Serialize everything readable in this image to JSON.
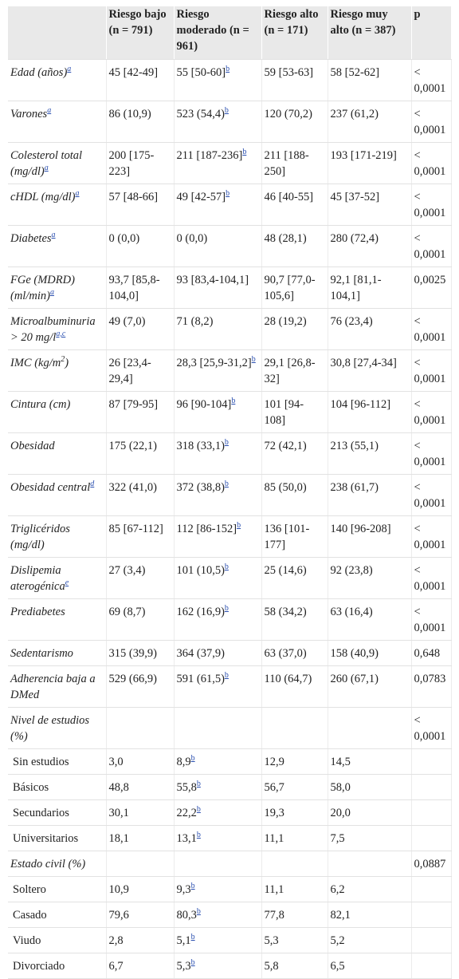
{
  "table": {
    "header": [
      "Riesgo bajo (n = 791)",
      "Riesgo moderado (n = 961)",
      "Riesgo alto (n = 171)",
      "Riesgo muy alto (n = 387)",
      "p"
    ],
    "rows": [
      {
        "label": [
          "Edad (años)",
          {
            "ref": "a"
          }
        ],
        "cells": [
          "45 [42-49]",
          [
            "55 [50-60]",
            {
              "ref": "b"
            }
          ],
          "59 [53-63]",
          "58 [52-62]",
          "< 0,0001"
        ]
      },
      {
        "label": [
          "Varones",
          {
            "ref": "a"
          }
        ],
        "cells": [
          "86 (10,9)",
          [
            "523 (54,4)",
            {
              "ref": "b"
            }
          ],
          "120 (70,2)",
          "237 (61,2)",
          "< 0,0001"
        ]
      },
      {
        "label": [
          "Colesterol total (mg/dl)",
          {
            "ref": "a"
          }
        ],
        "cells": [
          "200 [175-223]",
          [
            "211 [187-236]",
            {
              "ref": "b"
            }
          ],
          "211 [188-250]",
          "193 [171-219]",
          "< 0,0001"
        ]
      },
      {
        "label": [
          "cHDL (mg/dl)",
          {
            "ref": "a"
          }
        ],
        "cells": [
          "57 [48-66]",
          [
            "49 [42-57]",
            {
              "ref": "b"
            }
          ],
          "46 [40-55]",
          "45 [37-52]",
          "< 0,0001"
        ]
      },
      {
        "label": [
          "Diabetes",
          {
            "ref": "a"
          }
        ],
        "cells": [
          "0 (0,0)",
          "0 (0,0)",
          "48 (28,1)",
          "280 (72,4)",
          "< 0,0001"
        ]
      },
      {
        "label": [
          "FGe (MDRD) (ml/min)",
          {
            "ref": "a"
          }
        ],
        "cells": [
          "93,7 [85,8-104,0]",
          "93 [83,4-104,1]",
          "90,7 [77,0-105,6]",
          "92,1 [81,1-104,1]",
          "0,0025"
        ]
      },
      {
        "label": [
          "Microalbuminuria > 20 mg/l",
          {
            "ref": "a,c"
          }
        ],
        "cells": [
          "49 (7,0)",
          "71 (8,2)",
          "28 (19,2)",
          "76 (23,4)",
          "< 0,0001"
        ]
      },
      {
        "label": [
          "IMC (kg/m",
          {
            "sup": "2"
          },
          ")"
        ],
        "cells": [
          "26 [23,4-29,4]",
          [
            "28,3 [25,9-31,2]",
            {
              "ref": "b"
            }
          ],
          "29,1 [26,8-32]",
          "30,8 [27,4-34]",
          "< 0,0001"
        ]
      },
      {
        "label": [
          "Cintura (cm)"
        ],
        "cells": [
          "87 [79-95]",
          [
            "96 [90-104]",
            {
              "ref": "b"
            }
          ],
          "101 [94-108]",
          "104 [96-112]",
          "< 0,0001"
        ]
      },
      {
        "label": [
          "Obesidad"
        ],
        "cells": [
          "175 (22,1)",
          [
            "318 (33,1)",
            {
              "ref": "b"
            }
          ],
          "72 (42,1)",
          "213 (55,1)",
          "< 0,0001"
        ]
      },
      {
        "label": [
          "Obesidad central",
          {
            "ref": "d"
          }
        ],
        "cells": [
          "322 (41,0)",
          [
            "372 (38,8)",
            {
              "ref": "b"
            }
          ],
          "85 (50,0)",
          "238 (61,7)",
          "< 0,0001"
        ]
      },
      {
        "label": [
          "Triglicéridos (mg/dl)"
        ],
        "cells": [
          "85 [67-112]",
          [
            "112 [86-152]",
            {
              "ref": "b"
            }
          ],
          "136 [101-177]",
          "140 [96-208]",
          "< 0,0001"
        ]
      },
      {
        "label": [
          "Dislipemia aterogénica",
          {
            "ref": "e"
          }
        ],
        "cells": [
          "27 (3,4)",
          [
            "101 (10,5)",
            {
              "ref": "b"
            }
          ],
          "25 (14,6)",
          "92 (23,8)",
          "< 0,0001"
        ]
      },
      {
        "label": [
          "Prediabetes"
        ],
        "cells": [
          "69 (8,7)",
          [
            "162 (16,9)",
            {
              "ref": "b"
            }
          ],
          "58 (34,2)",
          "63 (16,4)",
          "< 0,0001"
        ]
      },
      {
        "label": [
          "Sedentarismo"
        ],
        "cells": [
          "315 (39,9)",
          "364 (37,9)",
          "63 (37,0)",
          "158 (40,9)",
          "0,648"
        ]
      },
      {
        "label": [
          "Adherencia baja a DMed"
        ],
        "cells": [
          "529 (66,9)",
          [
            "591 (61,5)",
            {
              "ref": "b"
            }
          ],
          "110 (64,7)",
          "260 (67,1)",
          "0,0783"
        ]
      },
      {
        "label": [
          "Nivel de estudios (%)"
        ],
        "cells": [
          null,
          null,
          null,
          null,
          "< 0,0001"
        ]
      },
      {
        "sub": true,
        "label": [
          "Sin estudios"
        ],
        "cells": [
          "3,0",
          [
            "8,9",
            {
              "ref": "b"
            }
          ],
          "12,9",
          "14,5",
          null
        ]
      },
      {
        "sub": true,
        "label": [
          "Básicos"
        ],
        "cells": [
          "48,8",
          [
            "55,8",
            {
              "ref": "b"
            }
          ],
          "56,7",
          "58,0",
          null
        ]
      },
      {
        "sub": true,
        "label": [
          "Secundarios"
        ],
        "cells": [
          "30,1",
          [
            "22,2",
            {
              "ref": "b"
            }
          ],
          "19,3",
          "20,0",
          null
        ]
      },
      {
        "sub": true,
        "label": [
          "Universitarios"
        ],
        "cells": [
          "18,1",
          [
            "13,1",
            {
              "ref": "b"
            }
          ],
          "11,1",
          "7,5",
          null
        ]
      },
      {
        "label": [
          "Estado civil (%)"
        ],
        "cells": [
          null,
          null,
          null,
          null,
          "0,0887"
        ]
      },
      {
        "sub": true,
        "label": [
          "Soltero"
        ],
        "cells": [
          "10,9",
          [
            "9,3",
            {
              "ref": "b"
            }
          ],
          "11,1",
          "6,2",
          null
        ]
      },
      {
        "sub": true,
        "label": [
          "Casado"
        ],
        "cells": [
          "79,6",
          [
            "80,3",
            {
              "ref": "b"
            }
          ],
          "77,8",
          "82,1",
          null
        ]
      },
      {
        "sub": true,
        "label": [
          "Viudo"
        ],
        "cells": [
          "2,8",
          [
            "5,1",
            {
              "ref": "b"
            }
          ],
          "5,3",
          "5,2",
          null
        ]
      },
      {
        "sub": true,
        "label": [
          "Divorciado"
        ],
        "cells": [
          "6,7",
          [
            "5,3",
            {
              "ref": "b"
            }
          ],
          "5,8",
          "6,5",
          null
        ]
      }
    ]
  }
}
